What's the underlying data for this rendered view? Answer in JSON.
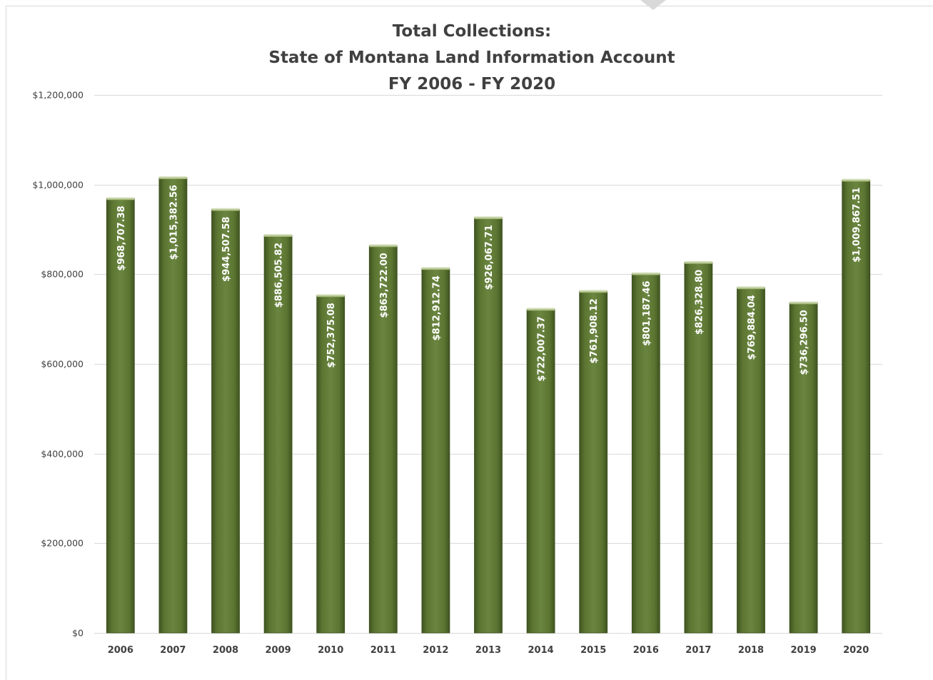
{
  "chart_data": {
    "type": "bar",
    "title_lines": [
      "Total Collections:",
      "State of Montana Land Information Account",
      "FY 2006 - FY 2020"
    ],
    "categories": [
      "2006",
      "2007",
      "2008",
      "2009",
      "2010",
      "2011",
      "2012",
      "2013",
      "2014",
      "2015",
      "2016",
      "2017",
      "2018",
      "2019",
      "2020"
    ],
    "values": [
      968707.38,
      1015382.56,
      944507.58,
      886505.82,
      752375.08,
      863722.0,
      812912.74,
      926067.71,
      722007.37,
      761908.12,
      801187.46,
      826328.8,
      769884.04,
      736296.5,
      1009867.51
    ],
    "data_labels": [
      "$968,707.38",
      "$1,015,382.56",
      "$944,507.58",
      "$886,505.82",
      "$752,375.08",
      "$863,722.00",
      "$812,912.74",
      "$926,067.71",
      "$722,007.37",
      "$761,908.12",
      "$801,187.46",
      "$826,328.80",
      "$769,884.04",
      "$736,296.50",
      "$1,009,867.51"
    ],
    "y_ticks": [
      0,
      200000,
      400000,
      600000,
      800000,
      1000000,
      1200000
    ],
    "y_tick_labels": [
      "$0",
      "$200,000",
      "$400,000",
      "$600,000",
      "$800,000",
      "$1,000,000",
      "$1,200,000"
    ],
    "ylim": [
      0,
      1200000
    ],
    "xlabel": "",
    "ylabel": "",
    "grid": true,
    "legend": "none",
    "bar_color": "#5a7230",
    "bar_highlight": "#7e9a4a",
    "gridline_color": "#d9d9d9"
  }
}
